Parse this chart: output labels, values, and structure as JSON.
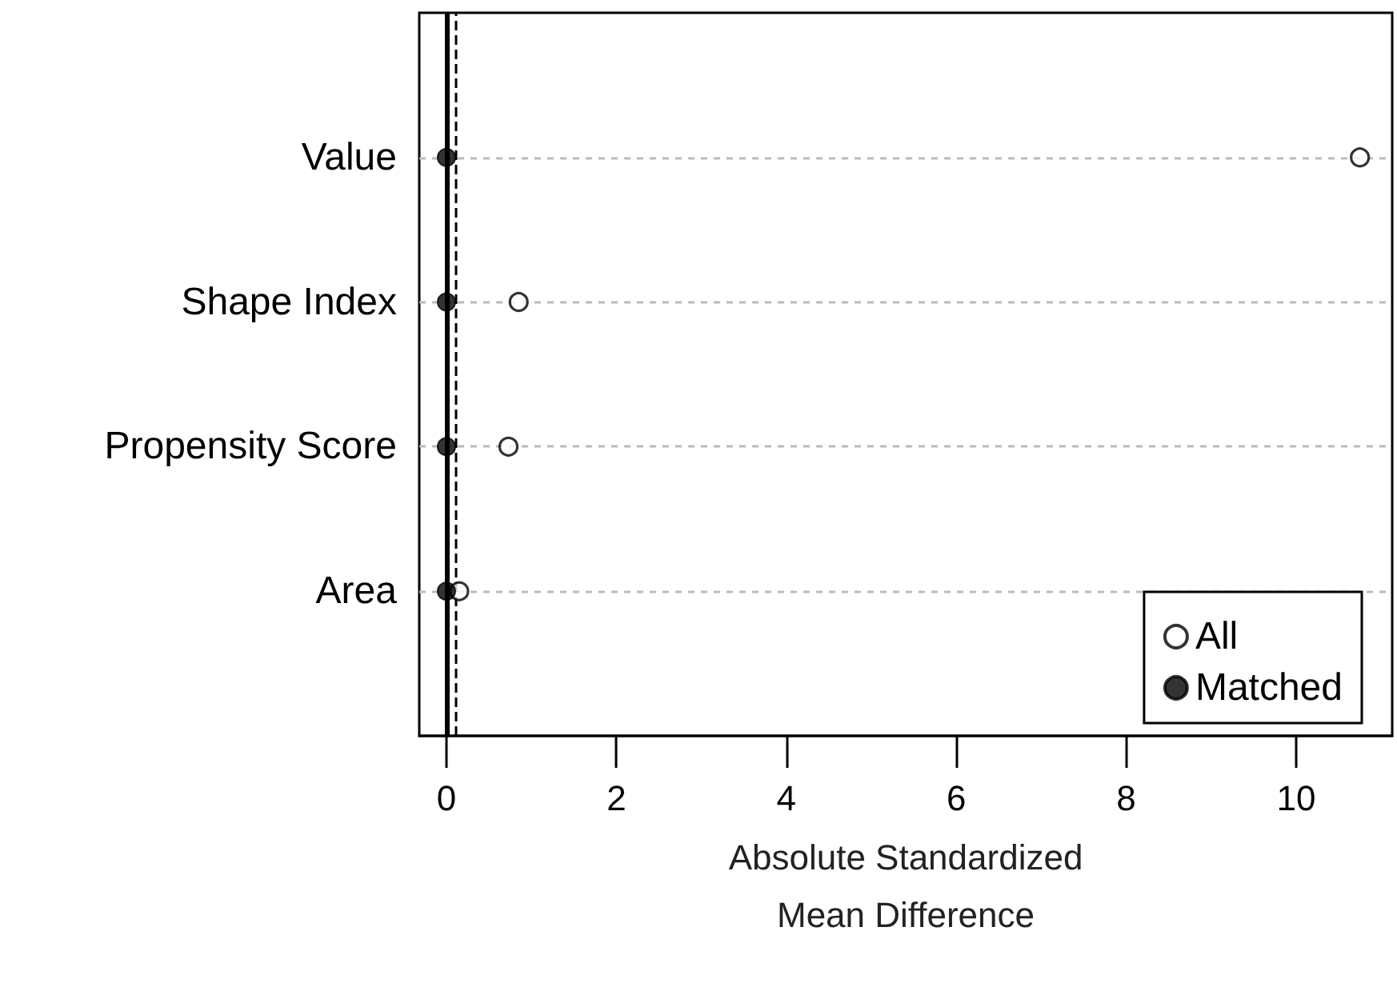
{
  "chart_data": {
    "type": "scatter",
    "orientation": "horizontal",
    "categories": [
      "Value",
      "Shape Index",
      "Propensity Score",
      "Area"
    ],
    "xlabel": "Absolute Standardized\nMean Difference",
    "xlim": [
      -0.32,
      11.13
    ],
    "xticks": [
      0,
      2,
      4,
      6,
      8,
      10
    ],
    "series": [
      {
        "name": "All",
        "color": "#000000",
        "values": [
          10.75,
          0.85,
          0.73,
          0.15
        ]
      },
      {
        "name": "Matched",
        "color": "#000000",
        "values": [
          0,
          0,
          0,
          0
        ]
      }
    ],
    "ref_lines": [
      {
        "axis": "x",
        "value": 0,
        "color": "#000000",
        "line_style": "solid"
      },
      {
        "axis": "x",
        "value": 0.1,
        "color": "#000000",
        "line_style": "dashed"
      }
    ],
    "marker": "circle",
    "grid": "y",
    "legend": "bottom right"
  }
}
